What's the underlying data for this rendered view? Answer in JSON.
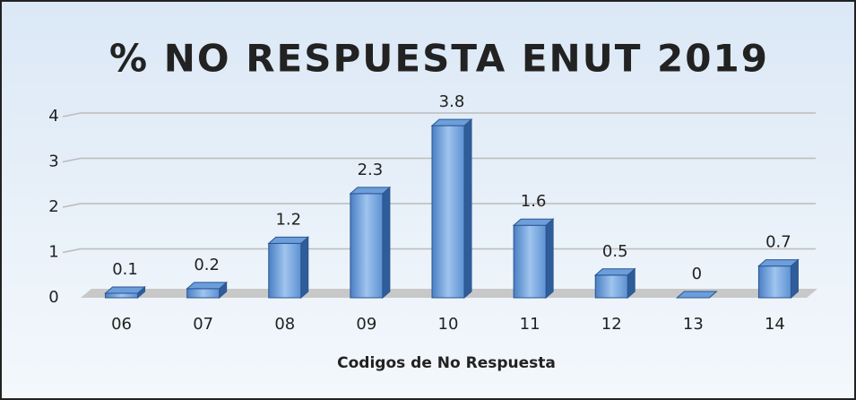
{
  "chart_data": {
    "type": "bar",
    "title": "% NO RESPUESTA ENUT 2019",
    "x_label": "Codigos de No Respuesta",
    "categories": [
      "06",
      "07",
      "08",
      "09",
      "10",
      "11",
      "12",
      "13",
      "14"
    ],
    "values": [
      0.1,
      0.2,
      1.2,
      2.3,
      3.8,
      1.6,
      0.5,
      0,
      0.7
    ],
    "color": "#5b8fd1",
    "ylim": [
      0,
      4
    ],
    "yticks": [
      0,
      1,
      2,
      3,
      4
    ],
    "grid": true
  }
}
